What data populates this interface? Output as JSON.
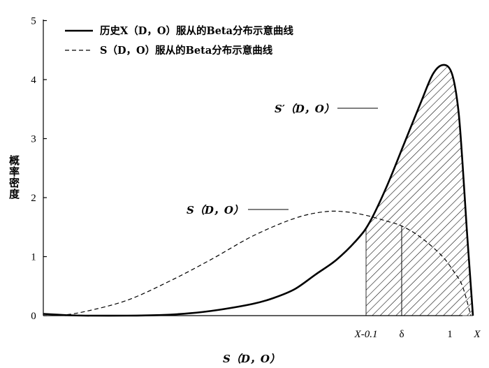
{
  "chart_data": {
    "type": "area",
    "ylabel": "概率密度",
    "xlabel": "S（D，O）",
    "ylim": [
      0,
      5
    ],
    "yticks": [
      "0",
      "1",
      "2",
      "3",
      "4",
      "5"
    ],
    "x_markers": [
      {
        "label": "X-0.1",
        "x": 0.77
      },
      {
        "label": "δ",
        "x": 0.855
      },
      {
        "label": "1",
        "x": 0.97
      },
      {
        "label": "X",
        "x": 1.035
      }
    ],
    "legend": {
      "position": "top-left",
      "items": [
        {
          "text": "历史X（D，O）服从的Beta分布示意曲线",
          "style": "solid"
        },
        {
          "text": "S（D，O）服从的Beta分布示意曲线",
          "style": "dashed"
        }
      ]
    },
    "series": [
      {
        "label": "S′（D，O）",
        "style": "solid",
        "points": [
          [
            0.0,
            0.03
          ],
          [
            0.05,
            0.01
          ],
          [
            0.1,
            0.0
          ],
          [
            0.2,
            0.0
          ],
          [
            0.28,
            0.01
          ],
          [
            0.35,
            0.04
          ],
          [
            0.42,
            0.1
          ],
          [
            0.5,
            0.2
          ],
          [
            0.55,
            0.3
          ],
          [
            0.6,
            0.45
          ],
          [
            0.65,
            0.7
          ],
          [
            0.7,
            0.95
          ],
          [
            0.75,
            1.3
          ],
          [
            0.78,
            1.6
          ],
          [
            0.82,
            2.2
          ],
          [
            0.86,
            2.9
          ],
          [
            0.9,
            3.6
          ],
          [
            0.93,
            4.1
          ],
          [
            0.955,
            4.25
          ],
          [
            0.975,
            4.1
          ],
          [
            0.99,
            3.5
          ],
          [
            1.0,
            2.6
          ],
          [
            1.01,
            1.5
          ],
          [
            1.02,
            0.5
          ],
          [
            1.025,
            0.0
          ]
        ]
      },
      {
        "label": "S（D，O）",
        "style": "dashed",
        "points": [
          [
            0.04,
            0.0
          ],
          [
            0.1,
            0.07
          ],
          [
            0.2,
            0.26
          ],
          [
            0.3,
            0.58
          ],
          [
            0.4,
            0.95
          ],
          [
            0.5,
            1.35
          ],
          [
            0.6,
            1.65
          ],
          [
            0.67,
            1.76
          ],
          [
            0.72,
            1.76
          ],
          [
            0.77,
            1.7
          ],
          [
            0.82,
            1.6
          ],
          [
            0.855,
            1.52
          ],
          [
            0.9,
            1.33
          ],
          [
            0.95,
            1.02
          ],
          [
            0.98,
            0.74
          ],
          [
            1.0,
            0.5
          ],
          [
            1.02,
            0.0
          ]
        ]
      }
    ],
    "shaded_region": {
      "from": "X-0.1",
      "to": "1",
      "under": "S′（D，O）",
      "pattern": "hatched"
    }
  }
}
